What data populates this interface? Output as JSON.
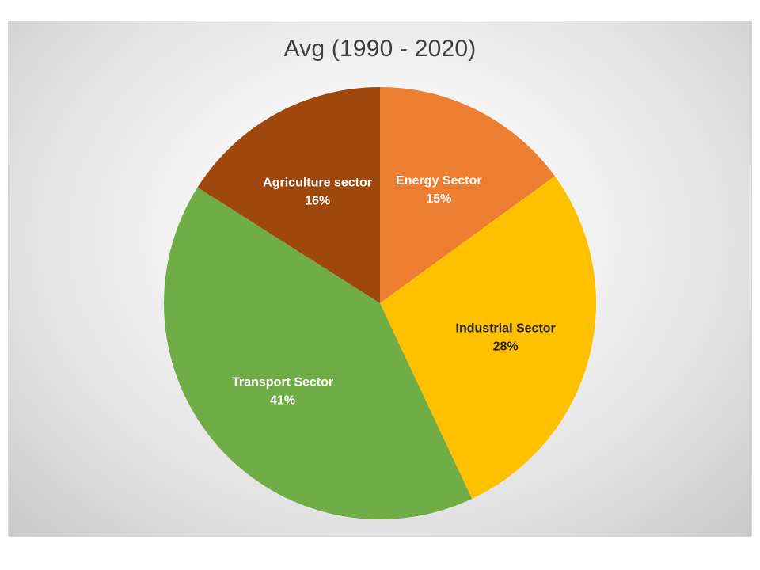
{
  "chart_data": {
    "type": "pie",
    "title": "Avg (1990 - 2020)",
    "start_angle_deg": 0,
    "direction": "clockwise",
    "slices": [
      {
        "label": "Energy Sector",
        "value": 15,
        "display": "15%",
        "color": "#ED7D31",
        "label_color": "#ffffff"
      },
      {
        "label": "Industrial Sector",
        "value": 28,
        "display": "28%",
        "color": "#FFC000",
        "label_color": "#262626"
      },
      {
        "label": "Transport Sector",
        "value": 41,
        "display": "41%",
        "color": "#70AD47",
        "label_color": "#ffffff"
      },
      {
        "label": "Agriculture sector",
        "value": 16,
        "display": "16%",
        "color": "#9E480E",
        "label_color": "#ffffff"
      }
    ]
  }
}
